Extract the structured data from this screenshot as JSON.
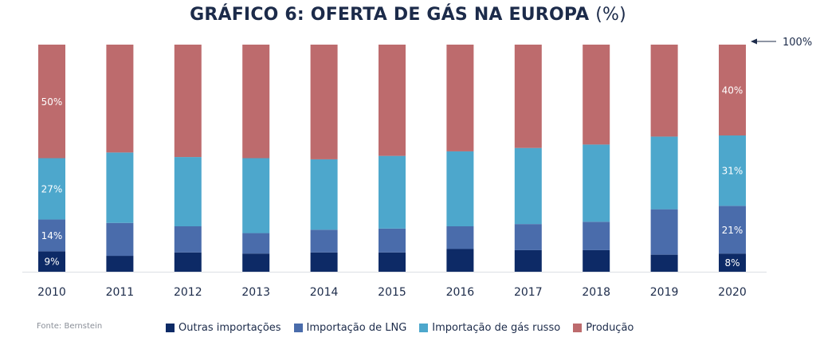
{
  "title": "GRÁFICO 6: OFERTA DE GÁS NA EUROPA",
  "title_unit": "(%)",
  "source": "Fonte: Bernstein",
  "reference_label": "100%",
  "chart_data": {
    "type": "bar",
    "stacked": true,
    "title": "GRÁFICO 6: OFERTA DE GÁS NA EUROPA (%)",
    "categories": [
      "2010",
      "2011",
      "2012",
      "2013",
      "2014",
      "2015",
      "2016",
      "2017",
      "2018",
      "2019",
      "2020"
    ],
    "ylim": [
      0,
      100
    ],
    "grid": false,
    "legend_position": "bottom",
    "series": [
      {
        "name": "Outras importações",
        "color": "#0d2a66",
        "values": [
          9,
          7,
          8.5,
          8,
          8.5,
          8.5,
          10,
          9.5,
          9.5,
          7.5,
          8
        ]
      },
      {
        "name": "Importação de LNG",
        "color": "#4a6cab",
        "values": [
          14,
          14.5,
          11.5,
          9,
          10,
          10.5,
          10,
          11.5,
          12.5,
          20,
          21
        ]
      },
      {
        "name": "Importação de gás russo",
        "color": "#4da7cc",
        "values": [
          27,
          31,
          30.5,
          33,
          31,
          32,
          33,
          33.5,
          34,
          32,
          31
        ]
      },
      {
        "name": "Produção",
        "color": "#bd6b6d",
        "values": [
          50,
          47.5,
          49.5,
          50,
          50.5,
          49,
          47,
          45.5,
          44,
          40.5,
          40
        ]
      }
    ],
    "data_labels": [
      {
        "category": "2010",
        "series": 0,
        "text": "9%"
      },
      {
        "category": "2010",
        "series": 1,
        "text": "14%"
      },
      {
        "category": "2010",
        "series": 2,
        "text": "27%"
      },
      {
        "category": "2010",
        "series": 3,
        "text": "50%"
      },
      {
        "category": "2020",
        "series": 0,
        "text": "8%"
      },
      {
        "category": "2020",
        "series": 1,
        "text": "21%"
      },
      {
        "category": "2020",
        "series": 2,
        "text": "31%"
      },
      {
        "category": "2020",
        "series": 3,
        "text": "40%"
      }
    ]
  }
}
